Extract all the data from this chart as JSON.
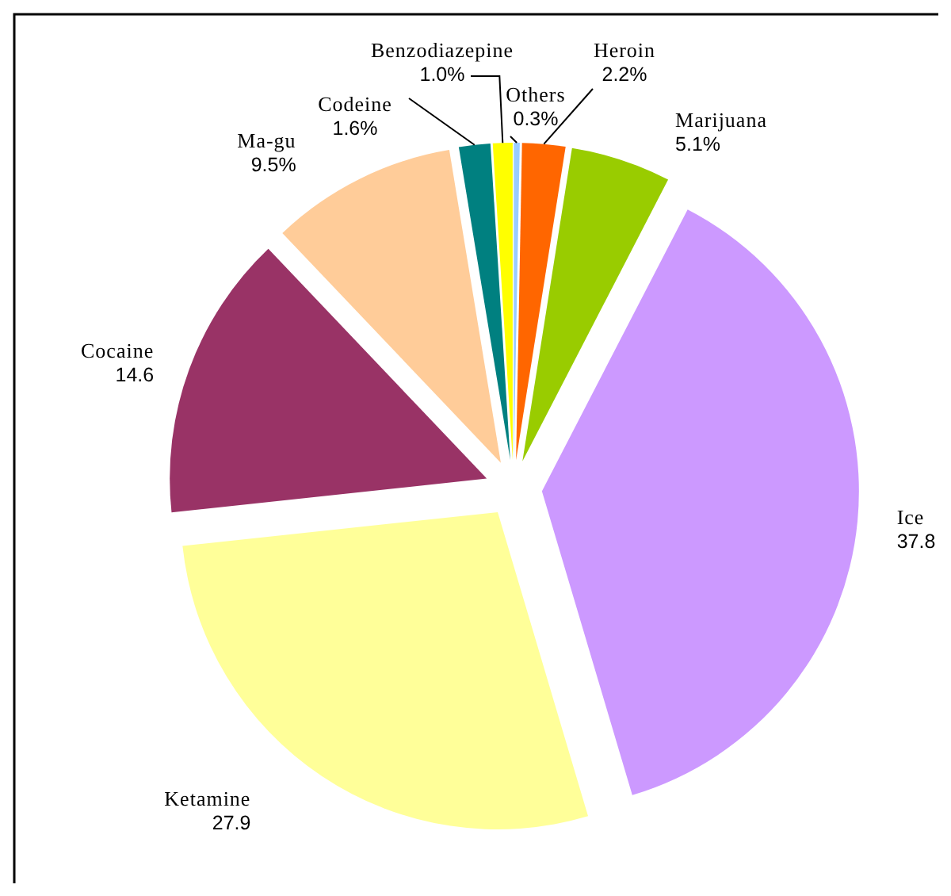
{
  "chart_data": {
    "type": "pie",
    "categories": [
      "Others",
      "Heroin",
      "Marijuana",
      "Ice",
      "Ketamine",
      "Cocaine",
      "Ma-gu",
      "Codeine",
      "Benzodiazepine"
    ],
    "values": [
      0.3,
      2.2,
      5.1,
      37.8,
      27.9,
      14.6,
      9.5,
      1.6,
      1.0
    ],
    "value_labels": [
      "0.3%",
      "2.2%",
      "5.1%",
      "37.8",
      "27.9",
      "14.6",
      "9.5%",
      "1.6%",
      "1.0%"
    ],
    "colors": [
      "#99ccff",
      "#ff6600",
      "#99cc00",
      "#cc99ff",
      "#ffff99",
      "#993366",
      "#ffcc99",
      "#008080",
      "#ffff00"
    ]
  }
}
